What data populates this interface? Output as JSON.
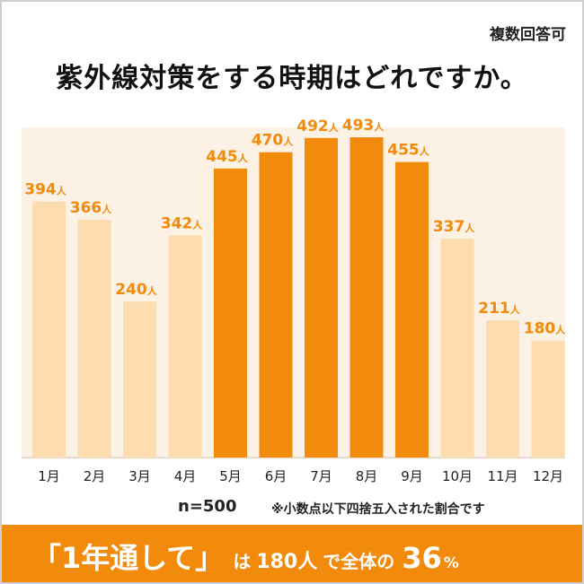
{
  "header": {
    "note": "複数回答可",
    "title": "紫外線対策をする時期はどれですか。"
  },
  "chart_data": {
    "type": "bar",
    "categories": [
      "1月",
      "2月",
      "3月",
      "4月",
      "5月",
      "6月",
      "7月",
      "8月",
      "9月",
      "10月",
      "11月",
      "12月"
    ],
    "values": [
      394,
      366,
      240,
      342,
      445,
      470,
      492,
      493,
      455,
      337,
      211,
      180
    ],
    "value_suffix": "人",
    "highlight": [
      false,
      false,
      false,
      false,
      true,
      true,
      true,
      true,
      true,
      false,
      false,
      false
    ],
    "ylim": [
      0,
      500
    ],
    "colors": {
      "highlight_bar": "#f28a0b",
      "normal_bar": "#fddcb0",
      "label": "#f28a0b",
      "background": "#fbf1e4"
    }
  },
  "footer": {
    "n": "n=500",
    "note": "※小数点以下四捨五入された割合です"
  },
  "banner": {
    "quote": "「1年通して」",
    "ha": "は",
    "count": "180人",
    "de": "で全体の",
    "percent_value": "36",
    "percent_sign": "%"
  }
}
